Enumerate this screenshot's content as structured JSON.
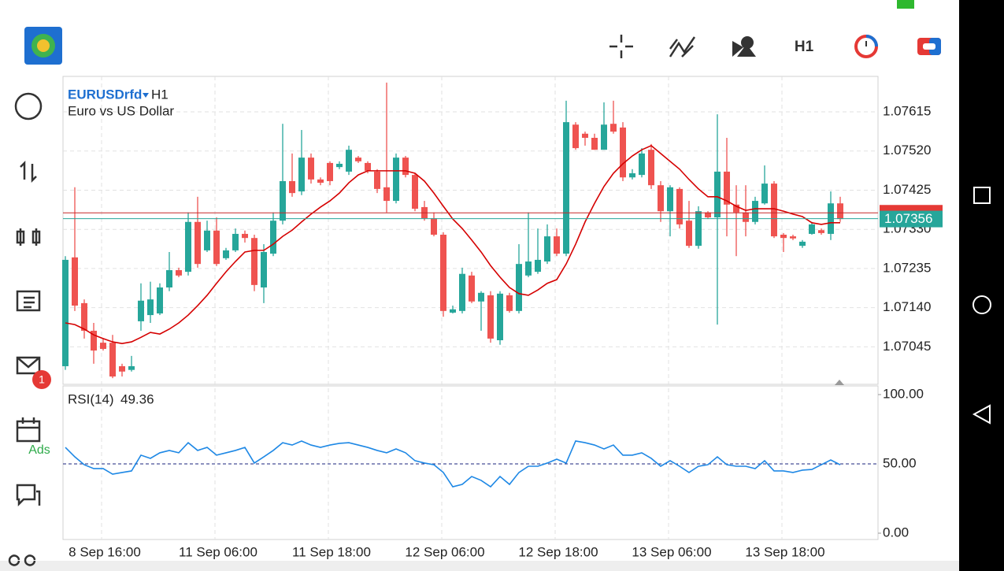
{
  "header": {
    "timeframe": "H1"
  },
  "sidebar": {
    "mail_badge": "1",
    "ads": "Ads"
  },
  "chart": {
    "type": "candlestick",
    "symbol": "EURUSDrfd",
    "timeframe": "H1",
    "description": "Euro vs US Dollar",
    "ylim": [
      1.06954,
      1.07701
    ],
    "yticks": [
      1.07615,
      {
        "value": 1.0752,
        "label": "1.07520"
      },
      1.07425,
      {
        "value": 1.0733,
        "label": "1.07330"
      },
      1.07235,
      {
        "value": 1.0714,
        "label": "1.07140"
      },
      1.07045
    ],
    "bid": 1.07356,
    "ask": 1.0737,
    "xlabels": [
      "8 Sep 16:00",
      "11 Sep 06:00",
      "11 Sep 18:00",
      "12 Sep 06:00",
      "12 Sep 18:00",
      "13 Sep 06:00",
      "13 Sep 18:00"
    ],
    "candles": [
      [
        1.06998,
        1.07265,
        1.06989,
        1.07256
      ],
      [
        1.07262,
        1.07432,
        1.07132,
        1.07145
      ],
      [
        1.07151,
        1.0716,
        1.07065,
        1.07084
      ],
      [
        1.07084,
        1.07103,
        1.07004,
        1.07036
      ],
      [
        1.07055,
        1.07065,
        1.07036,
        1.0704
      ],
      [
        1.07055,
        1.07074,
        1.06969,
        1.06973
      ],
      [
        1.06998,
        1.07004,
        1.06973,
        1.06985
      ],
      [
        1.06989,
        1.07023,
        1.06985,
        1.06998
      ],
      [
        1.07107,
        1.07199,
        1.07084,
        1.07157
      ],
      [
        1.07122,
        1.07203,
        1.07103,
        1.0716
      ],
      [
        1.07126,
        1.07199,
        1.07122,
        1.07189
      ],
      [
        1.07189,
        1.07275,
        1.0718,
        1.07231
      ],
      [
        1.07231,
        1.07237,
        1.07214,
        1.07218
      ],
      [
        1.07227,
        1.07371,
        1.07218,
        1.07348
      ],
      [
        1.07348,
        1.07409,
        1.07237,
        1.07246
      ],
      [
        1.07279,
        1.07351,
        1.07275,
        1.07327
      ],
      [
        1.07327,
        1.07359,
        1.07241,
        1.07246
      ],
      [
        1.0726,
        1.07285,
        1.07256,
        1.07279
      ],
      [
        1.07279,
        1.07332,
        1.07275,
        1.07319
      ],
      [
        1.07319,
        1.07327,
        1.07298,
        1.07309
      ],
      [
        1.07309,
        1.07317,
        1.0718,
        1.07195
      ],
      [
        1.07189,
        1.07294,
        1.07151,
        1.07275
      ],
      [
        1.07271,
        1.07371,
        1.07265,
        1.07351
      ],
      [
        1.07351,
        1.07586,
        1.07342,
        1.07447
      ],
      [
        1.07447,
        1.07514,
        1.07409,
        1.07418
      ],
      [
        1.07422,
        1.07571,
        1.07413,
        1.07504
      ],
      [
        1.07504,
        1.07514,
        1.07441,
        1.07451
      ],
      [
        1.07451,
        1.07456,
        1.07437,
        1.07443
      ],
      [
        1.07491,
        1.07495,
        1.07437,
        1.07447
      ],
      [
        1.07481,
        1.07495,
        1.07476,
        1.07489
      ],
      [
        1.0747,
        1.07533,
        1.07462,
        1.07523
      ],
      [
        1.07504,
        1.07508,
        1.07491,
        1.07495
      ],
      [
        1.07491,
        1.07495,
        1.07466,
        1.07472
      ],
      [
        1.0747,
        1.07476,
        1.07418,
        1.07428
      ],
      [
        1.07432,
        1.07686,
        1.07371,
        1.07399
      ],
      [
        1.07399,
        1.07514,
        1.07393,
        1.07504
      ],
      [
        1.07504,
        1.07508,
        1.07456,
        1.07462
      ],
      [
        1.07462,
        1.07466,
        1.07374,
        1.0738
      ],
      [
        1.07384,
        1.07399,
        1.07351,
        1.07357
      ],
      [
        1.07357,
        1.07371,
        1.07313,
        1.07317
      ],
      [
        1.07317,
        1.07323,
        1.07118,
        1.07132
      ],
      [
        1.07128,
        1.07145,
        1.07126,
        1.07136
      ],
      [
        1.07132,
        1.07237,
        1.07126,
        1.07222
      ],
      [
        1.07218,
        1.07227,
        1.07151,
        1.07155
      ],
      [
        1.07155,
        1.0718,
        1.07084,
        1.07176
      ],
      [
        1.0717,
        1.0718,
        1.07055,
        1.07065
      ],
      [
        1.07061,
        1.0718,
        1.0705,
        1.07174
      ],
      [
        1.0717,
        1.07176,
        1.07128,
        1.07132
      ],
      [
        1.07132,
        1.07294,
        1.07126,
        1.07246
      ],
      [
        1.07218,
        1.07371,
        1.07214,
        1.07252
      ],
      [
        1.07227,
        1.07332,
        1.07222,
        1.07256
      ],
      [
        1.07252,
        1.07342,
        1.07246,
        1.07313
      ],
      [
        1.07313,
        1.07332,
        1.07265,
        1.07271
      ],
      [
        1.07271,
        1.07642,
        1.07265,
        1.0759
      ],
      [
        1.07584,
        1.0759,
        1.07523,
        1.07527
      ],
      [
        1.07562,
        1.07567,
        1.07533,
        1.07552
      ],
      [
        1.07552,
        1.07562,
        1.07523,
        1.07523
      ],
      [
        1.07523,
        1.07638,
        1.07523,
        1.07584
      ],
      [
        1.07586,
        1.07642,
        1.07562,
        1.07567
      ],
      [
        1.07577,
        1.0759,
        1.07447,
        1.07456
      ],
      [
        1.07456,
        1.07476,
        1.07451,
        1.07466
      ],
      [
        1.07462,
        1.07527,
        1.07456,
        1.07514
      ],
      [
        1.07523,
        1.07537,
        1.07428,
        1.07437
      ],
      [
        1.07437,
        1.07447,
        1.07348,
        1.07374
      ],
      [
        1.07374,
        1.07437,
        1.07313,
        1.07432
      ],
      [
        1.07428,
        1.07432,
        1.07332,
        1.07342
      ],
      [
        1.07351,
        1.07399,
        1.07285,
        1.0729
      ],
      [
        1.0729,
        1.07386,
        1.07283,
        1.07374
      ],
      [
        1.07371,
        1.07374,
        1.07355,
        1.07359
      ],
      [
        1.07359,
        1.07609,
        1.07099,
        1.0747
      ],
      [
        1.0747,
        1.07552,
        1.07313,
        1.0739
      ],
      [
        1.0739,
        1.07437,
        1.07265,
        1.07371
      ],
      [
        1.07371,
        1.07437,
        1.07313,
        1.07348
      ],
      [
        1.07348,
        1.07409,
        1.07342,
        1.07399
      ],
      [
        1.07393,
        1.07485,
        1.0739,
        1.07441
      ],
      [
        1.07441,
        1.07447,
        1.07309,
        1.07313
      ],
      [
        1.07317,
        1.07321,
        1.07275,
        1.07309
      ],
      [
        1.07313,
        1.07317,
        1.07304,
        1.07308
      ],
      [
        1.0729,
        1.07304,
        1.07285,
        1.073
      ],
      [
        1.07319,
        1.07348,
        1.07317,
        1.07342
      ],
      [
        1.07328,
        1.07332,
        1.07317,
        1.07321
      ],
      [
        1.07319,
        1.07422,
        1.07304,
        1.07393
      ],
      [
        1.07393,
        1.07409,
        1.07348,
        1.07355
      ]
    ],
    "ma": [
      1.07103,
      1.07099,
      1.07088,
      1.07074,
      1.07065,
      1.07057,
      1.07053,
      1.07057,
      1.07068,
      1.0708,
      1.07076,
      1.07088,
      1.07103,
      1.07122,
      1.07145,
      1.0717,
      1.07199,
      1.07227,
      1.07252,
      1.07275,
      1.07279,
      1.07279,
      1.07294,
      1.07313,
      1.07328,
      1.07348,
      1.07367,
      1.07384,
      1.07399,
      1.07418,
      1.07443,
      1.07462,
      1.07472,
      1.07472,
      1.07472,
      1.07472,
      1.07472,
      1.07466,
      1.07447,
      1.07418,
      1.07386,
      1.07355,
      1.07332,
      1.07304,
      1.07275,
      1.07242,
      1.07214,
      1.07189,
      1.07174,
      1.0717,
      1.07183,
      1.07199,
      1.07208,
      1.07246,
      1.07294,
      1.07348,
      1.07393,
      1.07434,
      1.07466,
      1.07489,
      1.07508,
      1.07523,
      1.07533,
      1.07514,
      1.07495,
      1.07476,
      1.07451,
      1.07428,
      1.07409,
      1.07409,
      1.07399,
      1.07386,
      1.07376,
      1.0738,
      1.0738,
      1.0738,
      1.07374,
      1.07367,
      1.07361,
      1.07346,
      1.07342,
      1.07346,
      1.07346
    ],
    "rsi": {
      "name": "RSI(14)",
      "current": 49.36,
      "ylim": [
        0,
        100
      ],
      "yticks": [
        {
          "value": 100,
          "label": "100.00"
        },
        {
          "value": 50,
          "label": "50.00"
        },
        {
          "value": 0,
          "label": "0.00"
        }
      ],
      "values": [
        61.9,
        55.1,
        49.4,
        46.6,
        46.6,
        42.6,
        43.8,
        44.9,
        56.3,
        54.0,
        58.0,
        59.7,
        58.0,
        65.3,
        59.7,
        61.9,
        56.3,
        58.0,
        59.7,
        61.9,
        50.6,
        55.1,
        59.7,
        65.3,
        63.6,
        66.5,
        63.6,
        61.9,
        63.6,
        64.8,
        65.3,
        63.6,
        61.9,
        59.7,
        58.0,
        60.8,
        58.0,
        52.3,
        50.6,
        49.4,
        43.8,
        33.5,
        35.2,
        40.9,
        38.1,
        33.5,
        40.9,
        35.2,
        43.8,
        48.3,
        48.3,
        50.6,
        53.4,
        50.6,
        66.5,
        65.3,
        63.6,
        60.8,
        63.6,
        56.3,
        56.3,
        58.0,
        54.0,
        48.3,
        52.3,
        48.3,
        43.8,
        48.3,
        49.4,
        55.1,
        49.4,
        48.3,
        48.3,
        46.6,
        52.3,
        44.9,
        44.9,
        43.8,
        45.5,
        46.0,
        49.4,
        52.8,
        49.36
      ]
    }
  }
}
